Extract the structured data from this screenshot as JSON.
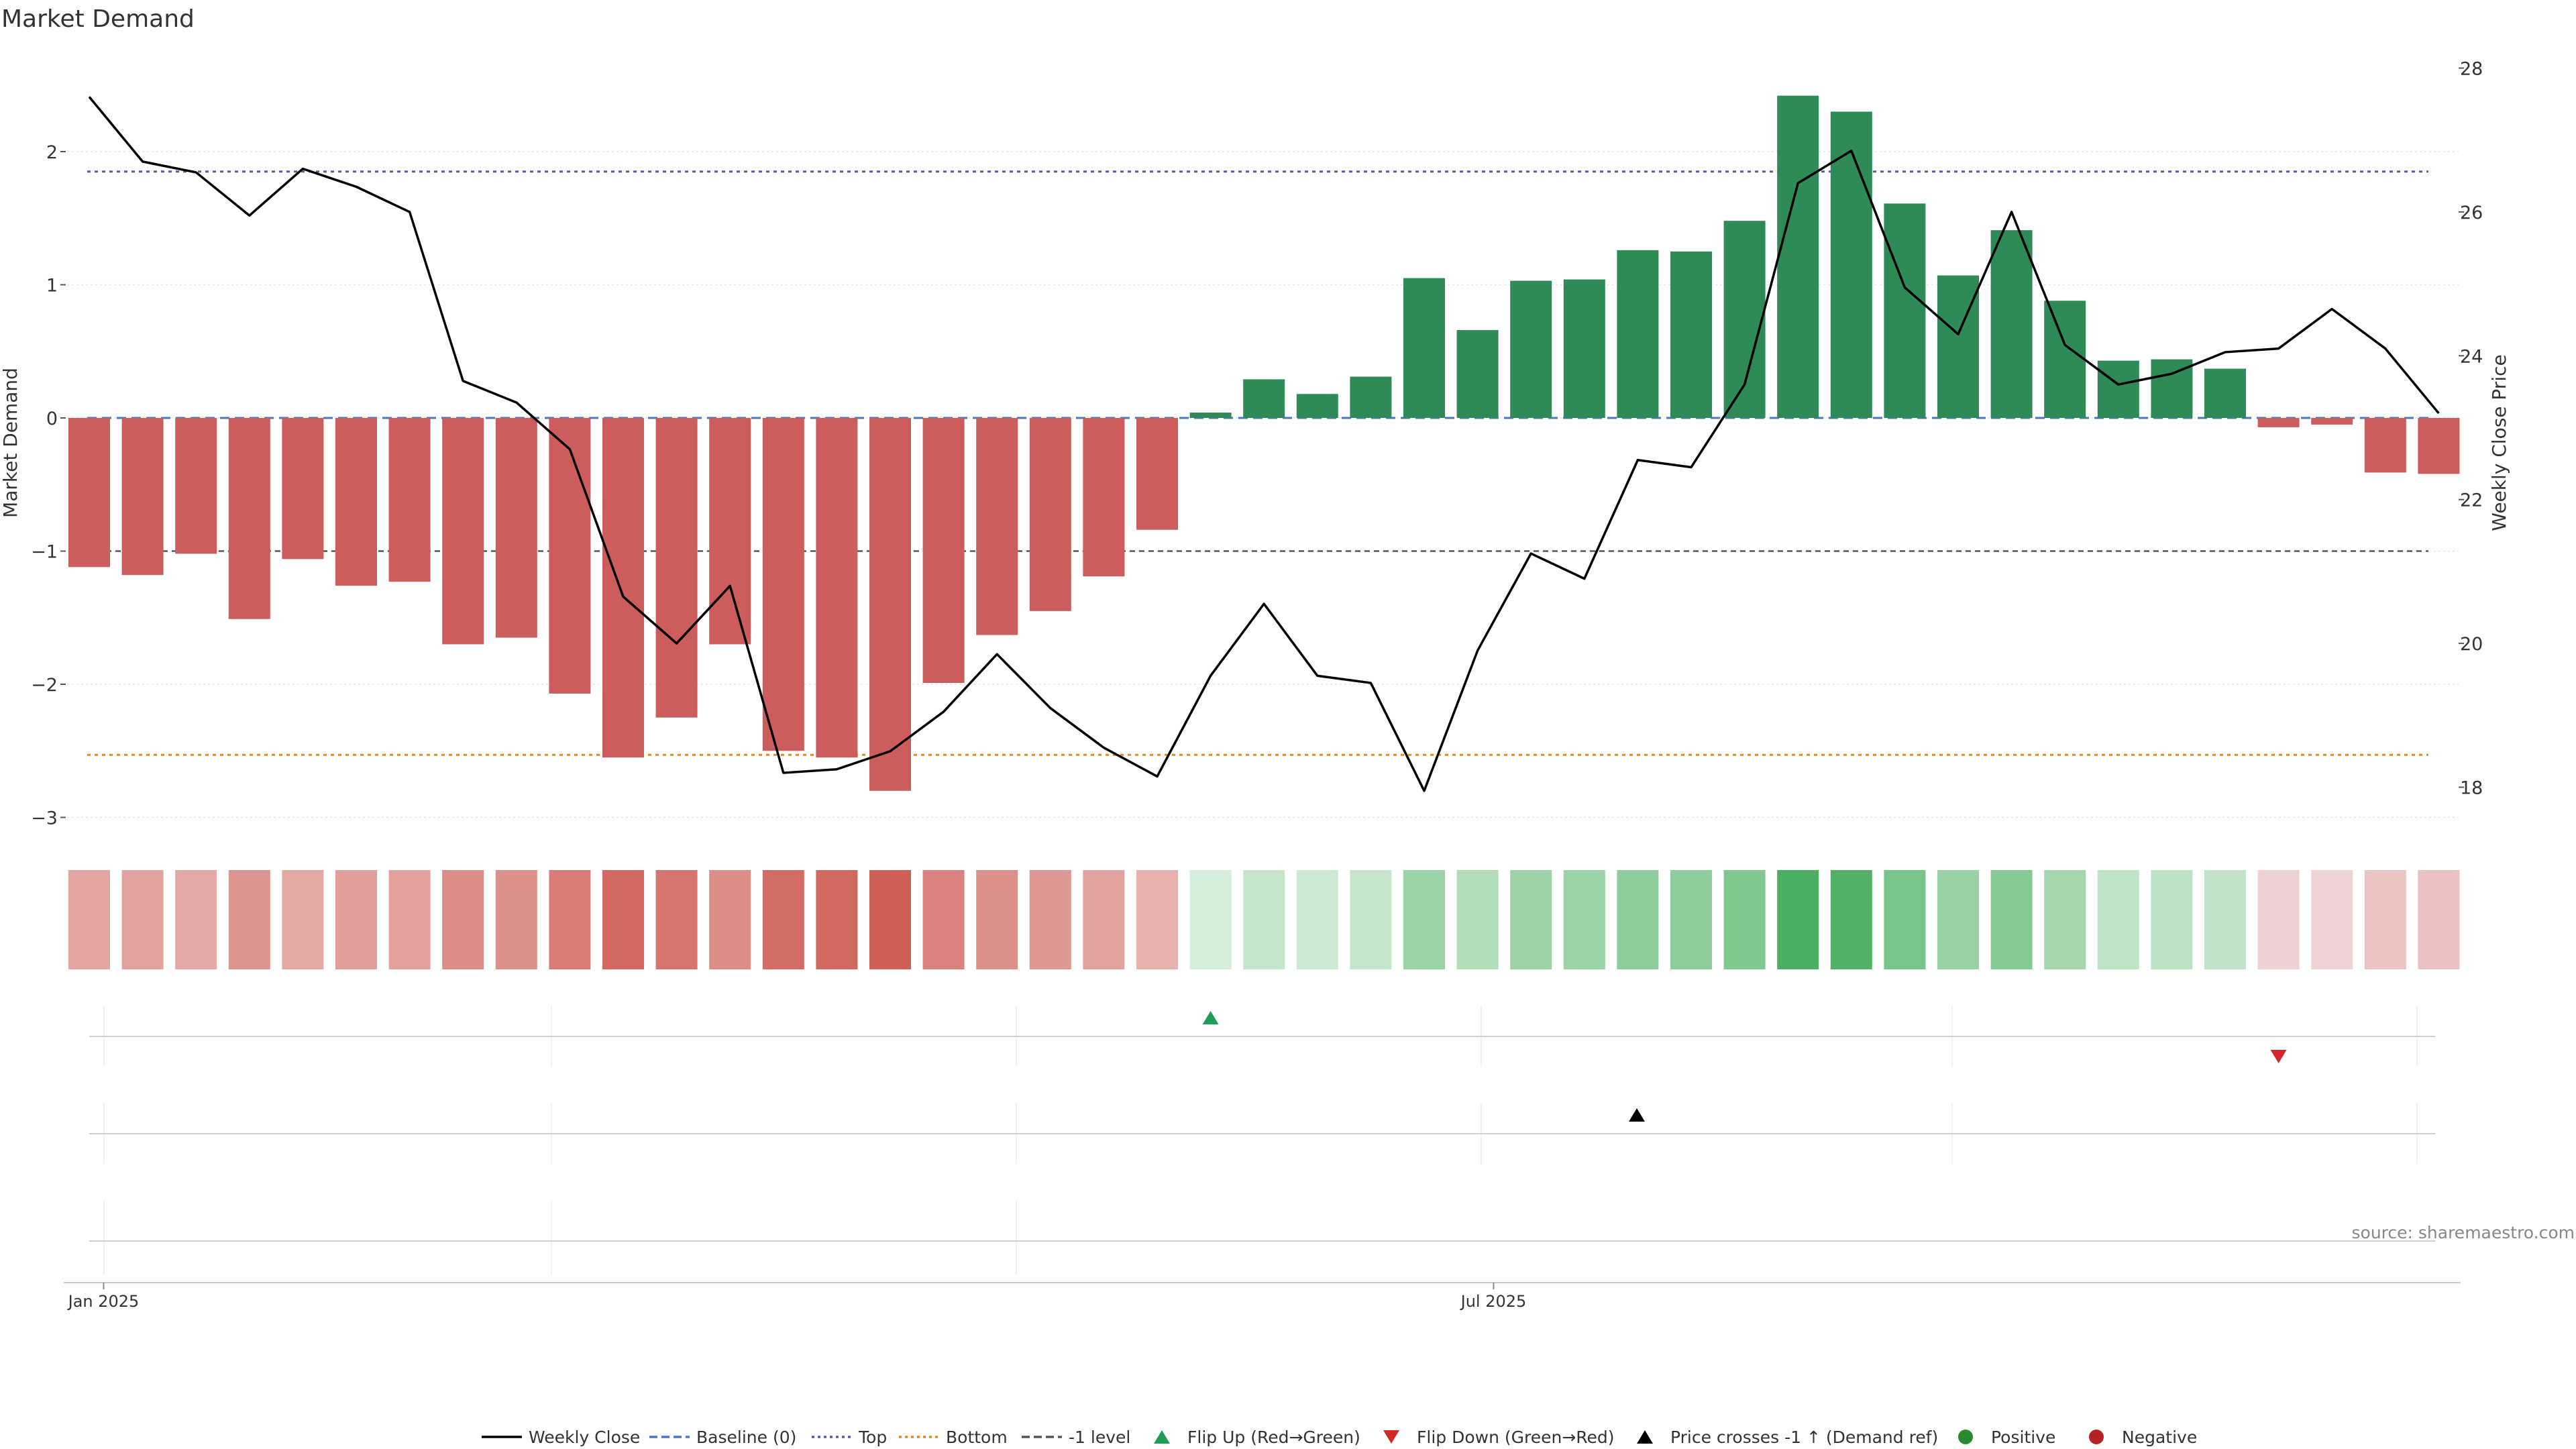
{
  "chart_data": {
    "type": "bar",
    "title": "Market Demand",
    "ylabel": "Market Demand",
    "y2label": "Weekly Close Price",
    "ylim": [
      -3.2,
      2.5
    ],
    "y2lim": [
      17.6,
      28.3
    ],
    "yticks": [
      -3,
      -2,
      -1,
      0,
      1,
      2
    ],
    "y2ticks": [
      18,
      20,
      22,
      24,
      26,
      28
    ],
    "x_ticks": [
      {
        "label": "Jan 2025",
        "week": 0.27
      },
      {
        "label": "Jul 2025",
        "week": 26.3
      }
    ],
    "weeks": 45,
    "demand": [
      -1.12,
      -1.18,
      -1.02,
      -1.51,
      -1.06,
      -1.26,
      -1.23,
      -1.7,
      -1.65,
      -2.07,
      -2.55,
      -2.25,
      -1.7,
      -2.5,
      -2.55,
      -2.8,
      -1.99,
      -1.63,
      -1.45,
      -1.19,
      -0.84,
      0.04,
      0.29,
      0.18,
      0.31,
      1.05,
      0.66,
      1.03,
      1.04,
      1.26,
      1.25,
      1.48,
      2.42,
      2.3,
      1.61,
      1.07,
      1.41,
      0.88,
      0.43,
      0.44,
      0.37,
      -0.07,
      -0.05,
      -0.41,
      -0.42
    ],
    "weekly_close": [
      27.6,
      26.7,
      26.55,
      25.95,
      26.6,
      26.35,
      26.0,
      23.65,
      23.35,
      22.7,
      20.65,
      20.0,
      20.8,
      18.2,
      18.25,
      18.5,
      19.05,
      19.85,
      19.1,
      18.55,
      18.15,
      19.55,
      20.55,
      19.55,
      19.45,
      17.95,
      19.9,
      21.25,
      20.9,
      22.55,
      22.45,
      23.6,
      26.4,
      26.85,
      24.95,
      24.3,
      26.0,
      24.15,
      23.6,
      23.75,
      24.05,
      24.1,
      24.65,
      24.1,
      23.2
    ],
    "top_level": 1.85,
    "bottom_level": -2.53,
    "minus_one_level": -1,
    "baseline": 0,
    "flip_up": [
      21
    ],
    "flip_down": [
      41
    ],
    "price_cross_up": [
      29
    ],
    "legend": {
      "position": "bottom",
      "items": [
        {
          "label": "Weekly Close",
          "style": "line",
          "color": "#000000"
        },
        {
          "label": "Baseline (0)",
          "style": "dashed",
          "color": "#4a78c0"
        },
        {
          "label": "Top",
          "style": "dotted",
          "color": "#5a5aa0"
        },
        {
          "label": "Bottom",
          "style": "dotted",
          "color": "#e08a1e"
        },
        {
          "label": "-1 level",
          "style": "dashed",
          "color": "#555555"
        },
        {
          "label": "Flip Up (Red→Green)",
          "style": "triangle-up",
          "color": "#1f9d55"
        },
        {
          "label": "Flip Down (Green→Red)",
          "style": "triangle-down",
          "color": "#d62728"
        },
        {
          "label": "Price crosses -1 ↑ (Demand ref)",
          "style": "triangle-up",
          "color": "#000000"
        },
        {
          "label": "Positive",
          "style": "circle",
          "color": "#2a8a30"
        },
        {
          "label": "Negative",
          "style": "circle",
          "color": "#b22222"
        }
      ]
    },
    "colors": {
      "positive": "#2e8b57",
      "negative": "#cd5c5c",
      "price_line": "#000000"
    },
    "source": "source: sharemaestro.com"
  }
}
